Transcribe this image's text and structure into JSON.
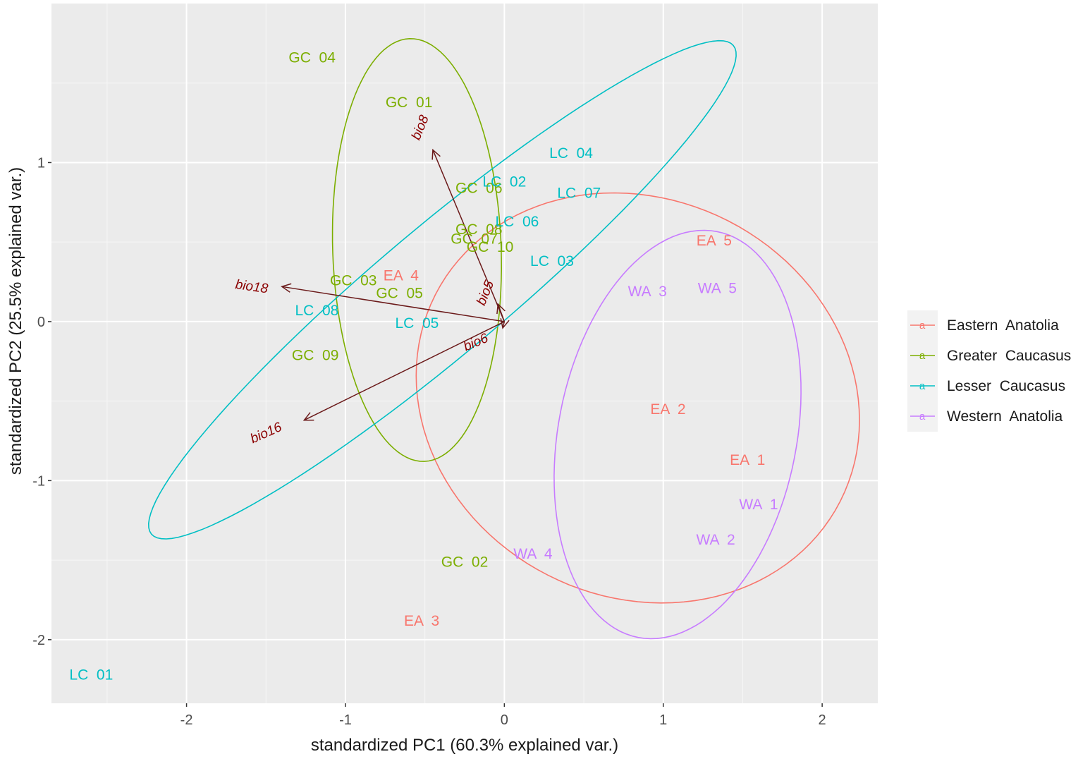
{
  "chart_data": {
    "type": "scatter",
    "subtype": "pca-biplot",
    "xlabel": "standardized PC1 (60.3% explained var.)",
    "ylabel": "standardized PC2 (25.5% explained var.)",
    "xlim": [
      -2.85,
      2.35
    ],
    "ylim": [
      -2.4,
      2.0
    ],
    "xticks": [
      -2,
      -1,
      0,
      1,
      2
    ],
    "xtick_labels": [
      "-2",
      "-1",
      "0",
      "1",
      "2"
    ],
    "yticks": [
      -2,
      -1,
      0,
      1
    ],
    "ytick_labels": [
      "-2",
      "-1",
      "0",
      "1"
    ],
    "grid": true,
    "legend_position": "right",
    "groups": [
      {
        "name": "Eastern Anatolia",
        "color": "#F8766D"
      },
      {
        "name": "Greater Caucasus",
        "color": "#7CAE00"
      },
      {
        "name": "Lesser Caucasus",
        "color": "#00BFC4"
      },
      {
        "name": "Western Anatolia",
        "color": "#C77CFF"
      }
    ],
    "points": [
      {
        "label": "EA  1",
        "group": 0,
        "x": 1.53,
        "y": -0.87
      },
      {
        "label": "EA  2",
        "group": 0,
        "x": 1.03,
        "y": -0.55
      },
      {
        "label": "EA  3",
        "group": 0,
        "x": -0.52,
        "y": -1.88
      },
      {
        "label": "EA  4",
        "group": 0,
        "x": -0.65,
        "y": 0.29
      },
      {
        "label": "EA  5",
        "group": 0,
        "x": 1.32,
        "y": 0.51
      },
      {
        "label": "GC  01",
        "group": 1,
        "x": -0.6,
        "y": 1.38
      },
      {
        "label": "GC  02",
        "group": 1,
        "x": -0.25,
        "y": -1.51
      },
      {
        "label": "GC  03",
        "group": 1,
        "x": -0.95,
        "y": 0.26
      },
      {
        "label": "GC  04",
        "group": 1,
        "x": -1.21,
        "y": 1.66
      },
      {
        "label": "GC  05",
        "group": 1,
        "x": -0.66,
        "y": 0.18
      },
      {
        "label": "GC  06",
        "group": 1,
        "x": -0.16,
        "y": 0.84
      },
      {
        "label": "GC  07",
        "group": 1,
        "x": -0.19,
        "y": 0.52
      },
      {
        "label": "GC  08",
        "group": 1,
        "x": -0.16,
        "y": 0.58
      },
      {
        "label": "GC  09",
        "group": 1,
        "x": -1.19,
        "y": -0.21
      },
      {
        "label": "GC  10",
        "group": 1,
        "x": -0.09,
        "y": 0.47
      },
      {
        "label": "LC  01",
        "group": 2,
        "x": -2.6,
        "y": -2.22
      },
      {
        "label": "LC  02",
        "group": 2,
        "x": 0.0,
        "y": 0.88
      },
      {
        "label": "LC  03",
        "group": 2,
        "x": 0.3,
        "y": 0.38
      },
      {
        "label": "LC  04",
        "group": 2,
        "x": 0.42,
        "y": 1.06
      },
      {
        "label": "LC  05",
        "group": 2,
        "x": -0.55,
        "y": -0.01
      },
      {
        "label": "LC  06",
        "group": 2,
        "x": 0.08,
        "y": 0.63
      },
      {
        "label": "LC  07",
        "group": 2,
        "x": 0.47,
        "y": 0.81
      },
      {
        "label": "LC  08",
        "group": 2,
        "x": -1.18,
        "y": 0.07
      },
      {
        "label": "WA  1",
        "group": 3,
        "x": 1.6,
        "y": -1.15
      },
      {
        "label": "WA  2",
        "group": 3,
        "x": 1.33,
        "y": -1.37
      },
      {
        "label": "WA  3",
        "group": 3,
        "x": 0.9,
        "y": 0.19
      },
      {
        "label": "WA  4",
        "group": 3,
        "x": 0.18,
        "y": -1.46
      },
      {
        "label": "WA  5",
        "group": 3,
        "x": 1.34,
        "y": 0.21
      }
    ],
    "ellipses": [
      {
        "group": 0,
        "cx": 0.84,
        "cy": -0.48,
        "a": 1.43,
        "b": 1.25,
        "angle_deg": -27
      },
      {
        "group": 1,
        "cx": -0.55,
        "cy": 0.45,
        "a": 1.33,
        "b": 0.53,
        "angle_deg": 92
      },
      {
        "group": 2,
        "cx": -0.39,
        "cy": 0.2,
        "a": 2.39,
        "b": 0.4,
        "angle_deg": 40
      },
      {
        "group": 3,
        "cx": 1.09,
        "cy": -0.71,
        "a": 1.3,
        "b": 0.75,
        "angle_deg": 79
      }
    ],
    "variables": [
      {
        "name": "bio8",
        "x": -0.45,
        "y": 1.08,
        "label_x": -0.53,
        "label_y": 1.22,
        "label_angle": -68
      },
      {
        "name": "bio18",
        "x": -1.4,
        "y": 0.22,
        "label_x": -1.59,
        "label_y": 0.22,
        "label_angle": 8
      },
      {
        "name": "bio16",
        "x": -1.26,
        "y": -0.62,
        "label_x": -1.5,
        "label_y": -0.7,
        "label_angle": -24
      },
      {
        "name": "bio5",
        "x": -0.04,
        "y": 0.11,
        "label_x": -0.12,
        "label_y": 0.18,
        "label_angle": -68
      },
      {
        "name": "bio6",
        "x": -0.01,
        "y": -0.04,
        "label_x": -0.18,
        "label_y": -0.13,
        "label_angle": -23
      }
    ]
  }
}
